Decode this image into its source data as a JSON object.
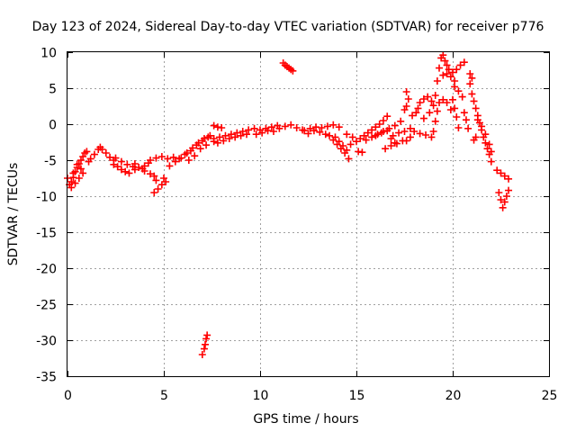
{
  "chart_data": {
    "type": "scatter",
    "title": "Day 123 of 2024, Sidereal Day-to-day VTEC variation (SDTVAR) for receiver p776",
    "xlabel": "GPS time / hours",
    "ylabel": "SDTVAR / TECUs",
    "xlim": [
      0,
      25
    ],
    "ylim": [
      -35,
      10
    ],
    "xticks": [
      0,
      5,
      10,
      15,
      20,
      25
    ],
    "yticks": [
      10,
      5,
      0,
      -5,
      -10,
      -15,
      -20,
      -25,
      -30,
      -35
    ],
    "grid": true,
    "marker": "plus",
    "marker_color": "#ff0000",
    "series": [
      {
        "name": "SDTVAR",
        "points": [
          [
            0.0,
            -7.5
          ],
          [
            0.1,
            -8.4
          ],
          [
            0.2,
            -8.0
          ],
          [
            0.3,
            -7.4
          ],
          [
            0.4,
            -6.6
          ],
          [
            0.5,
            -6.0
          ],
          [
            0.6,
            -5.5
          ],
          [
            0.7,
            -5.0
          ],
          [
            0.8,
            -4.5
          ],
          [
            0.9,
            -4.0
          ],
          [
            1.0,
            -3.8
          ],
          [
            0.2,
            -8.8
          ],
          [
            0.4,
            -8.2
          ],
          [
            0.6,
            -7.5
          ],
          [
            0.8,
            -6.8
          ],
          [
            0.3,
            -6.8
          ],
          [
            0.5,
            -5.6
          ],
          [
            0.7,
            -6.2
          ],
          [
            1.1,
            -5.2
          ],
          [
            1.2,
            -4.8
          ],
          [
            1.4,
            -4.2
          ],
          [
            1.6,
            -3.5
          ],
          [
            1.7,
            -3.2
          ],
          [
            1.8,
            -3.5
          ],
          [
            2.0,
            -4.0
          ],
          [
            2.2,
            -4.6
          ],
          [
            2.4,
            -5.0
          ],
          [
            2.4,
            -5.6
          ],
          [
            2.6,
            -5.9
          ],
          [
            2.8,
            -6.3
          ],
          [
            3.0,
            -6.6
          ],
          [
            3.2,
            -6.8
          ],
          [
            2.5,
            -4.7
          ],
          [
            2.8,
            -5.2
          ],
          [
            3.1,
            -5.6
          ],
          [
            3.4,
            -5.9
          ],
          [
            3.5,
            -6.3
          ],
          [
            3.5,
            -5.5
          ],
          [
            3.7,
            -6.0
          ],
          [
            3.9,
            -6.2
          ],
          [
            4.0,
            -5.8
          ],
          [
            4.2,
            -5.4
          ],
          [
            4.0,
            -6.5
          ],
          [
            4.3,
            -6.9
          ],
          [
            4.5,
            -7.2
          ],
          [
            4.3,
            -5.0
          ],
          [
            4.6,
            -4.7
          ],
          [
            4.9,
            -4.5
          ],
          [
            5.2,
            -4.8
          ],
          [
            5.5,
            -4.6
          ],
          [
            4.5,
            -9.5
          ],
          [
            4.7,
            -9.0
          ],
          [
            4.9,
            -8.4
          ],
          [
            5.0,
            -7.5
          ],
          [
            5.1,
            -8.0
          ],
          [
            4.6,
            -7.8
          ],
          [
            5.3,
            -5.8
          ],
          [
            5.6,
            -5.2
          ],
          [
            5.9,
            -4.7
          ],
          [
            6.2,
            -4.0
          ],
          [
            6.5,
            -3.3
          ],
          [
            6.8,
            -2.6
          ],
          [
            7.1,
            -2.0
          ],
          [
            7.4,
            -1.6
          ],
          [
            5.8,
            -4.8
          ],
          [
            6.1,
            -4.2
          ],
          [
            6.4,
            -3.7
          ],
          [
            6.7,
            -2.9
          ],
          [
            7.0,
            -2.3
          ],
          [
            7.3,
            -1.8
          ],
          [
            6.3,
            -5.0
          ],
          [
            6.6,
            -4.4
          ],
          [
            6.9,
            -3.4
          ],
          [
            7.2,
            -2.9
          ],
          [
            7.6,
            -2.4
          ],
          [
            7.0,
            -32.0
          ],
          [
            7.1,
            -31.2
          ],
          [
            7.15,
            -30.6
          ],
          [
            7.2,
            -29.8
          ],
          [
            7.25,
            -29.3
          ],
          [
            7.6,
            -2.0
          ],
          [
            7.9,
            -1.8
          ],
          [
            8.2,
            -1.6
          ],
          [
            8.5,
            -1.4
          ],
          [
            8.8,
            -1.2
          ],
          [
            9.1,
            -1.0
          ],
          [
            7.8,
            -2.6
          ],
          [
            8.1,
            -2.3
          ],
          [
            8.4,
            -2.0
          ],
          [
            8.7,
            -1.8
          ],
          [
            9.0,
            -1.6
          ],
          [
            9.3,
            -1.4
          ],
          [
            7.6,
            -0.2
          ],
          [
            7.8,
            -0.4
          ],
          [
            8.0,
            -0.5
          ],
          [
            9.4,
            -0.8
          ],
          [
            9.7,
            -0.6
          ],
          [
            10.0,
            -0.8
          ],
          [
            10.3,
            -0.6
          ],
          [
            10.6,
            -0.4
          ],
          [
            10.9,
            -0.2
          ],
          [
            9.8,
            -1.4
          ],
          [
            10.1,
            -1.2
          ],
          [
            10.4,
            -0.9
          ],
          [
            10.7,
            -1.0
          ],
          [
            11.0,
            -0.6
          ],
          [
            11.3,
            -0.3
          ],
          [
            11.6,
            -0.1
          ],
          [
            11.9,
            -0.5
          ],
          [
            12.2,
            -0.8
          ],
          [
            11.2,
            8.5
          ],
          [
            11.3,
            8.2
          ],
          [
            11.4,
            8.0
          ],
          [
            11.5,
            7.8
          ],
          [
            11.6,
            7.6
          ],
          [
            11.7,
            7.4
          ],
          [
            12.3,
            -0.9
          ],
          [
            12.6,
            -0.6
          ],
          [
            12.9,
            -0.4
          ],
          [
            13.2,
            -0.5
          ],
          [
            13.5,
            -0.3
          ],
          [
            13.8,
            -0.1
          ],
          [
            14.1,
            -0.4
          ],
          [
            12.8,
            -0.9
          ],
          [
            13.1,
            -1.1
          ],
          [
            12.5,
            -1.3
          ],
          [
            13.4,
            -1.4
          ],
          [
            13.6,
            -1.6
          ],
          [
            13.8,
            -2.2
          ],
          [
            14.0,
            -2.8
          ],
          [
            14.2,
            -3.4
          ],
          [
            14.4,
            -4.0
          ],
          [
            14.6,
            -4.8
          ],
          [
            13.9,
            -1.8
          ],
          [
            14.1,
            -2.4
          ],
          [
            14.3,
            -3.0
          ],
          [
            14.5,
            -3.6
          ],
          [
            14.7,
            -2.8
          ],
          [
            14.5,
            -1.4
          ],
          [
            14.8,
            -1.8
          ],
          [
            15.0,
            -2.4
          ],
          [
            15.1,
            -3.8
          ],
          [
            15.3,
            -3.9
          ],
          [
            15.2,
            -2.0
          ],
          [
            15.4,
            -1.6
          ],
          [
            15.6,
            -1.2
          ],
          [
            15.8,
            -0.8
          ],
          [
            16.0,
            -0.4
          ],
          [
            16.2,
            0.0
          ],
          [
            16.4,
            0.5
          ],
          [
            16.6,
            1.1
          ],
          [
            15.5,
            -2.2
          ],
          [
            15.8,
            -1.8
          ],
          [
            16.1,
            -1.4
          ],
          [
            16.4,
            -1.0
          ],
          [
            16.7,
            -0.6
          ],
          [
            17.0,
            -0.2
          ],
          [
            17.3,
            0.4
          ],
          [
            16.0,
            -1.6
          ],
          [
            16.3,
            -1.2
          ],
          [
            16.6,
            -0.9
          ],
          [
            16.8,
            -2.0
          ],
          [
            17.0,
            -2.6
          ],
          [
            16.5,
            -3.4
          ],
          [
            16.8,
            -3.0
          ],
          [
            17.1,
            -2.7
          ],
          [
            17.4,
            -2.3
          ],
          [
            16.9,
            -1.6
          ],
          [
            17.2,
            -1.2
          ],
          [
            17.5,
            -1.0
          ],
          [
            17.8,
            -0.6
          ],
          [
            17.6,
            -2.3
          ],
          [
            17.8,
            -1.8
          ],
          [
            17.5,
            2.0
          ],
          [
            17.6,
            2.5
          ],
          [
            17.7,
            3.5
          ],
          [
            17.6,
            4.5
          ],
          [
            17.9,
            1.2
          ],
          [
            18.1,
            1.6
          ],
          [
            18.2,
            2.2
          ],
          [
            18.3,
            3.0
          ],
          [
            18.5,
            3.5
          ],
          [
            18.7,
            3.8
          ],
          [
            18.9,
            3.2
          ],
          [
            18.0,
            -1.0
          ],
          [
            18.3,
            -1.3
          ],
          [
            18.6,
            -1.5
          ],
          [
            18.9,
            -1.8
          ],
          [
            18.5,
            0.8
          ],
          [
            18.8,
            1.6
          ],
          [
            19.0,
            2.6
          ],
          [
            19.1,
            4.0
          ],
          [
            19.2,
            6.0
          ],
          [
            19.3,
            7.8
          ],
          [
            19.4,
            9.2
          ],
          [
            19.5,
            9.6
          ],
          [
            19.6,
            8.8
          ],
          [
            19.7,
            8.2
          ],
          [
            19.8,
            7.6
          ],
          [
            20.0,
            7.2
          ],
          [
            20.2,
            7.6
          ],
          [
            20.4,
            8.2
          ],
          [
            20.6,
            8.6
          ],
          [
            19.0,
            -1.0
          ],
          [
            19.1,
            0.4
          ],
          [
            19.2,
            1.8
          ],
          [
            19.3,
            3.0
          ],
          [
            19.5,
            3.4
          ],
          [
            19.7,
            3.0
          ],
          [
            19.9,
            2.0
          ],
          [
            19.5,
            6.8
          ],
          [
            19.7,
            7.0
          ],
          [
            19.9,
            6.6
          ],
          [
            20.1,
            6.0
          ],
          [
            20.0,
            3.4
          ],
          [
            20.1,
            2.2
          ],
          [
            20.2,
            1.0
          ],
          [
            20.3,
            -0.5
          ],
          [
            20.1,
            5.2
          ],
          [
            20.3,
            4.6
          ],
          [
            20.5,
            3.8
          ],
          [
            20.6,
            1.6
          ],
          [
            20.7,
            0.6
          ],
          [
            20.8,
            -0.6
          ],
          [
            20.9,
            5.6
          ],
          [
            20.9,
            7.0
          ],
          [
            21.0,
            6.4
          ],
          [
            21.0,
            4.2
          ],
          [
            21.1,
            3.2
          ],
          [
            21.2,
            2.2
          ],
          [
            21.3,
            1.2
          ],
          [
            21.4,
            0.2
          ],
          [
            21.5,
            -0.8
          ],
          [
            21.6,
            -1.8
          ],
          [
            21.7,
            -2.6
          ],
          [
            21.8,
            -3.4
          ],
          [
            21.9,
            -4.2
          ],
          [
            22.0,
            -5.2
          ],
          [
            21.3,
            0.6
          ],
          [
            21.5,
            -0.3
          ],
          [
            21.7,
            -1.4
          ],
          [
            21.9,
            -2.8
          ],
          [
            22.0,
            -3.8
          ],
          [
            21.1,
            -2.2
          ],
          [
            21.2,
            -1.8
          ],
          [
            22.3,
            -6.4
          ],
          [
            22.5,
            -6.8
          ],
          [
            22.7,
            -7.2
          ],
          [
            22.9,
            -7.6
          ],
          [
            22.4,
            -9.5
          ],
          [
            22.5,
            -10.5
          ],
          [
            22.6,
            -11.6
          ],
          [
            22.8,
            -10.0
          ],
          [
            22.9,
            -9.2
          ],
          [
            22.7,
            -10.8
          ]
        ]
      }
    ]
  }
}
